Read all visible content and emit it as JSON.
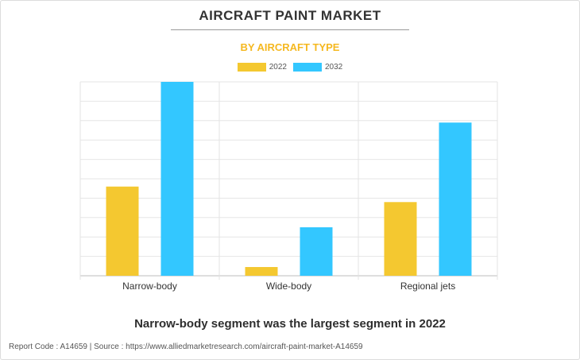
{
  "header": {
    "title": "AIRCRAFT PAINT MARKET",
    "subtitle": "BY AIRCRAFT TYPE"
  },
  "caption": "Narrow-body segment was the largest segment in 2022",
  "footer": "Report Code : A14659  |  Source : https://www.alliedmarketresearch.com/aircraft-paint-market-A14659",
  "chart_data": {
    "type": "bar",
    "title": "AIRCRAFT PAINT MARKET",
    "subtitle": "BY AIRCRAFT TYPE",
    "categories": [
      "Narrow-body",
      "Wide-body",
      "Regional jets"
    ],
    "series": [
      {
        "name": "2022",
        "color": "#f4c830",
        "values": [
          46,
          4.5,
          38
        ]
      },
      {
        "name": "2032",
        "color": "#33c7ff",
        "values": [
          100,
          25,
          79
        ]
      }
    ],
    "xlabel": "",
    "ylabel": "",
    "ylim": [
      0,
      100
    ],
    "grid": true,
    "legend_position": "top-center",
    "y_tick_labels_shown": false
  }
}
